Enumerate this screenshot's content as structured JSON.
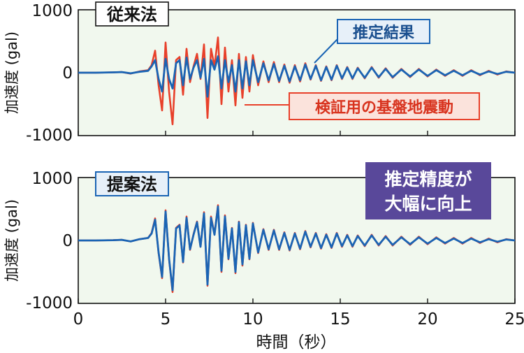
{
  "chart_data": [
    {
      "type": "line",
      "title": "従来法",
      "ylabel": "加速度 (gal)",
      "xlabel": "",
      "xlim": [
        0,
        25
      ],
      "ylim": [
        -1000,
        1000
      ],
      "yticks": [
        "1000",
        "0",
        "-1000"
      ],
      "grid": false,
      "series": [
        {
          "name": "検証用の基盤地震動",
          "color": "#e8402a",
          "x": [
            0,
            1,
            2,
            2.5,
            3,
            3.5,
            4,
            4.2,
            4.4,
            4.6,
            4.8,
            5.0,
            5.2,
            5.4,
            5.6,
            5.8,
            6.0,
            6.2,
            6.4,
            6.6,
            6.8,
            7.0,
            7.2,
            7.4,
            7.6,
            7.8,
            8.0,
            8.2,
            8.4,
            8.6,
            8.8,
            9.0,
            9.2,
            9.4,
            9.6,
            9.8,
            10.0,
            10.3,
            10.6,
            10.9,
            11.2,
            11.5,
            11.8,
            12.1,
            12.4,
            12.7,
            13.0,
            13.3,
            13.6,
            13.9,
            14.2,
            14.5,
            14.8,
            15.1,
            15.4,
            15.7,
            16.0,
            16.4,
            16.8,
            17.2,
            17.6,
            18.0,
            18.5,
            19.0,
            19.5,
            20.0,
            20.5,
            21.0,
            21.5,
            22.0,
            22.5,
            23.0,
            23.5,
            24.0,
            24.5,
            25.0
          ],
          "y": [
            0,
            0,
            5,
            10,
            -15,
            20,
            40,
            120,
            350,
            -200,
            -600,
            480,
            -300,
            -820,
            200,
            250,
            -350,
            380,
            -150,
            100,
            300,
            -100,
            450,
            -720,
            380,
            100,
            560,
            -500,
            400,
            -300,
            200,
            -520,
            300,
            -400,
            250,
            -300,
            280,
            -200,
            180,
            -150,
            170,
            -150,
            130,
            -160,
            120,
            -140,
            150,
            -110,
            120,
            -130,
            100,
            -120,
            120,
            -100,
            90,
            -100,
            80,
            -90,
            90,
            -80,
            70,
            -80,
            60,
            -70,
            60,
            -60,
            50,
            -50,
            40,
            -50,
            40,
            -40,
            30,
            -30,
            20,
            0
          ]
        },
        {
          "name": "推定結果",
          "color": "#1a64b4",
          "x": [
            0,
            1,
            2,
            2.5,
            3,
            3.5,
            4,
            4.2,
            4.4,
            4.6,
            4.8,
            5.0,
            5.2,
            5.4,
            5.6,
            5.8,
            6.0,
            6.2,
            6.4,
            6.6,
            6.8,
            7.0,
            7.2,
            7.4,
            7.6,
            7.8,
            8.0,
            8.2,
            8.4,
            8.6,
            8.8,
            9.0,
            9.2,
            9.4,
            9.6,
            9.8,
            10.0,
            10.3,
            10.6,
            10.9,
            11.2,
            11.5,
            11.8,
            12.1,
            12.4,
            12.7,
            13.0,
            13.3,
            13.6,
            13.9,
            14.2,
            14.5,
            14.8,
            15.1,
            15.4,
            15.7,
            16.0,
            16.4,
            16.8,
            17.2,
            17.6,
            18.0,
            18.5,
            19.0,
            19.5,
            20.0,
            20.5,
            21.0,
            21.5,
            22.0,
            22.5,
            23.0,
            23.5,
            24.0,
            24.5,
            25.0
          ],
          "y": [
            0,
            0,
            5,
            10,
            -10,
            15,
            30,
            100,
            200,
            -100,
            -300,
            220,
            -100,
            -250,
            150,
            200,
            -200,
            240,
            -100,
            80,
            200,
            -80,
            220,
            -380,
            200,
            50,
            260,
            -250,
            200,
            -150,
            120,
            -300,
            200,
            -250,
            180,
            -200,
            200,
            -150,
            150,
            -120,
            140,
            -130,
            110,
            -140,
            100,
            -120,
            130,
            -100,
            110,
            -120,
            90,
            -110,
            110,
            -90,
            80,
            -90,
            70,
            -80,
            80,
            -70,
            60,
            -70,
            50,
            -60,
            50,
            -50,
            40,
            -40,
            30,
            -40,
            30,
            -30,
            20,
            -20,
            15,
            0
          ]
        }
      ],
      "annotations": [
        "推定結果",
        "検証用の基盤地震動"
      ]
    },
    {
      "type": "line",
      "title": "提案法",
      "ylabel": "加速度 (gal)",
      "xlabel": "時間（秒）",
      "xlim": [
        0,
        25
      ],
      "ylim": [
        -1000,
        1000
      ],
      "yticks": [
        "1000",
        "0",
        "-1000"
      ],
      "xticks": [
        0,
        5,
        10,
        15,
        20,
        25
      ],
      "grid": false,
      "series": [
        {
          "name": "検証用の基盤地震動",
          "color": "#e8402a",
          "x": [
            0,
            1,
            2,
            2.5,
            3,
            3.5,
            4,
            4.2,
            4.4,
            4.6,
            4.8,
            5.0,
            5.2,
            5.4,
            5.6,
            5.8,
            6.0,
            6.2,
            6.4,
            6.6,
            6.8,
            7.0,
            7.2,
            7.4,
            7.6,
            7.8,
            8.0,
            8.2,
            8.4,
            8.6,
            8.8,
            9.0,
            9.2,
            9.4,
            9.6,
            9.8,
            10.0,
            10.3,
            10.6,
            10.9,
            11.2,
            11.5,
            11.8,
            12.1,
            12.4,
            12.7,
            13.0,
            13.3,
            13.6,
            13.9,
            14.2,
            14.5,
            14.8,
            15.1,
            15.4,
            15.7,
            16.0,
            16.4,
            16.8,
            17.2,
            17.6,
            18.0,
            18.5,
            19.0,
            19.5,
            20.0,
            20.5,
            21.0,
            21.5,
            22.0,
            22.5,
            23.0,
            23.5,
            24.0,
            24.5,
            25.0
          ],
          "y": [
            0,
            0,
            5,
            10,
            -15,
            20,
            40,
            120,
            350,
            -200,
            -600,
            480,
            -300,
            -820,
            200,
            250,
            -350,
            380,
            -150,
            100,
            300,
            -100,
            450,
            -720,
            380,
            100,
            560,
            -500,
            400,
            -300,
            200,
            -520,
            300,
            -400,
            250,
            -300,
            280,
            -200,
            180,
            -150,
            170,
            -150,
            130,
            -160,
            120,
            -140,
            150,
            -110,
            120,
            -130,
            100,
            -120,
            120,
            -100,
            90,
            -100,
            80,
            -90,
            90,
            -80,
            70,
            -80,
            60,
            -70,
            60,
            -60,
            50,
            -50,
            40,
            -50,
            40,
            -40,
            30,
            -30,
            20,
            0
          ]
        },
        {
          "name": "推定結果",
          "color": "#1a64b4",
          "x": [
            0,
            1,
            2,
            2.5,
            3,
            3.5,
            4,
            4.2,
            4.4,
            4.6,
            4.8,
            5.0,
            5.2,
            5.4,
            5.6,
            5.8,
            6.0,
            6.2,
            6.4,
            6.6,
            6.8,
            7.0,
            7.2,
            7.4,
            7.6,
            7.8,
            8.0,
            8.2,
            8.4,
            8.6,
            8.8,
            9.0,
            9.2,
            9.4,
            9.6,
            9.8,
            10.0,
            10.3,
            10.6,
            10.9,
            11.2,
            11.5,
            11.8,
            12.1,
            12.4,
            12.7,
            13.0,
            13.3,
            13.6,
            13.9,
            14.2,
            14.5,
            14.8,
            15.1,
            15.4,
            15.7,
            16.0,
            16.4,
            16.8,
            17.2,
            17.6,
            18.0,
            18.5,
            19.0,
            19.5,
            20.0,
            20.5,
            21.0,
            21.5,
            22.0,
            22.5,
            23.0,
            23.5,
            24.0,
            24.5,
            25.0
          ],
          "y": [
            0,
            0,
            5,
            10,
            -15,
            20,
            40,
            110,
            330,
            -190,
            -580,
            460,
            -290,
            -790,
            190,
            240,
            -340,
            360,
            -140,
            90,
            290,
            -100,
            430,
            -700,
            360,
            90,
            540,
            -480,
            380,
            -290,
            190,
            -500,
            290,
            -380,
            240,
            -290,
            270,
            -190,
            170,
            -140,
            160,
            -140,
            120,
            -150,
            110,
            -130,
            140,
            -100,
            110,
            -120,
            90,
            -110,
            110,
            -90,
            80,
            -90,
            70,
            -80,
            80,
            -70,
            60,
            -70,
            50,
            -60,
            50,
            -50,
            40,
            -40,
            30,
            -40,
            30,
            -30,
            20,
            -20,
            15,
            0
          ]
        }
      ],
      "annotations": [
        "推定精度が",
        "大幅に向上"
      ]
    }
  ],
  "colors": {
    "plot_bg": "#f1f8ee",
    "observed": "#e8402a",
    "estimated": "#1a64b4",
    "callout_bg": "#59489a",
    "label_red_bg": "#fbe3dc",
    "label_blue_bg": "#e7f0f9"
  }
}
